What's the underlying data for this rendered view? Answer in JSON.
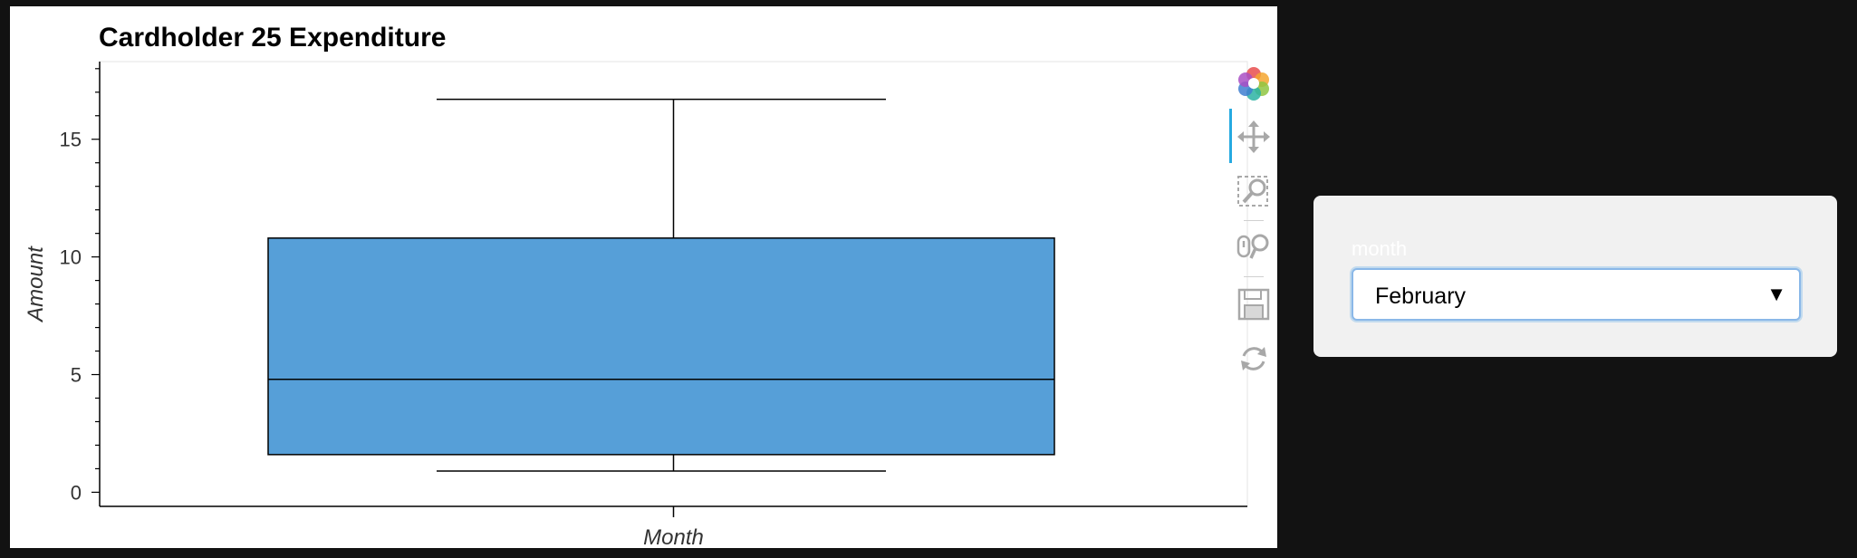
{
  "chart_data": {
    "type": "box",
    "title": "Cardholder 25 Expenditure",
    "xlabel": "Month",
    "ylabel": "Amount",
    "categories": [
      ""
    ],
    "yticks": [
      0,
      5,
      10,
      15
    ],
    "ylim": [
      -0.6,
      18.3
    ],
    "grid": false,
    "box": {
      "lower_whisker": 0.9,
      "q1": 1.6,
      "median": 4.8,
      "q3": 10.8,
      "upper_whisker": 16.7
    },
    "color": "#569fd8"
  },
  "toolbar": {
    "tools": [
      "bokeh-logo-icon",
      "pan-icon",
      "box-zoom-icon",
      "wheel-zoom-icon",
      "save-icon",
      "reset-icon"
    ]
  },
  "widget": {
    "label": "month",
    "selected": "February"
  }
}
